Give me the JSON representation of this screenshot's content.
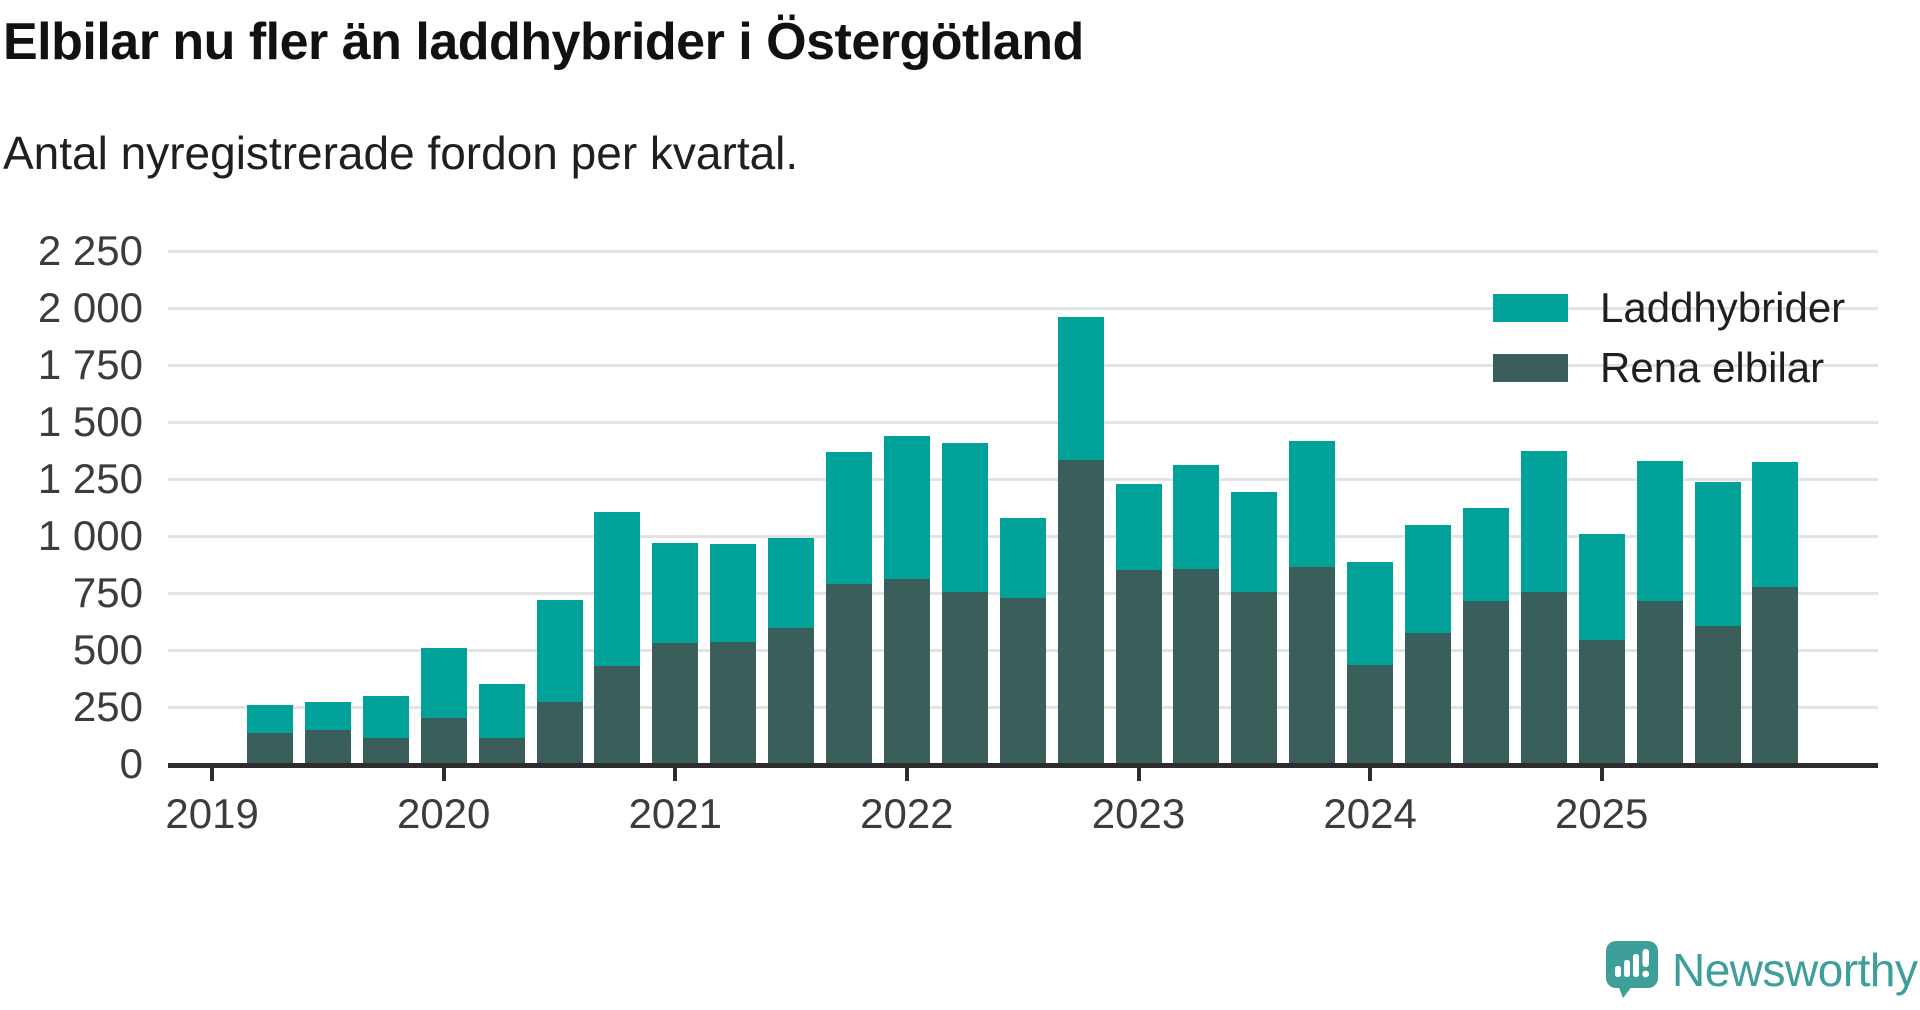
{
  "title": "Elbilar nu fler än laddhybrider i Östergötland",
  "subtitle": "Antal nyregistrerade fordon per kvartal.",
  "legend": {
    "items": [
      {
        "label": "Laddhybrider",
        "color": "#00a29a"
      },
      {
        "label": "Rena elbilar",
        "color": "#3a5e59"
      }
    ]
  },
  "branding": {
    "text": "Newsworthy",
    "color": "#3e9e99"
  },
  "colors": {
    "laddhybrider": "#00a29a",
    "rena_elbilar": "#3a5e59",
    "grid": "#e3e3e3",
    "axis": "#2d2d2d"
  },
  "chart_data": {
    "type": "bar",
    "stacked": true,
    "title": "Elbilar nu fler än laddhybrider i Östergötland",
    "subtitle": "Antal nyregistrerade fordon per kvartal.",
    "categories": [
      "2019Q1",
      "2019Q2",
      "2019Q3",
      "2019Q4",
      "2020Q1",
      "2020Q2",
      "2020Q3",
      "2020Q4",
      "2021Q1",
      "2021Q2",
      "2021Q3",
      "2021Q4",
      "2022Q1",
      "2022Q2",
      "2022Q3",
      "2022Q4",
      "2023Q1",
      "2023Q2",
      "2023Q3",
      "2023Q4",
      "2024Q1",
      "2024Q2",
      "2024Q3",
      "2024Q4",
      "2025Q1",
      "2025Q2",
      "2025Q3"
    ],
    "series": [
      {
        "name": "Rena elbilar",
        "color": "#3a5e59",
        "values": [
          135,
          150,
          115,
          200,
          115,
          270,
          430,
          530,
          535,
          595,
          790,
          810,
          755,
          730,
          1335,
          850,
          855,
          755,
          865,
          435,
          575,
          715,
          755,
          545,
          715,
          605,
          775
        ]
      },
      {
        "name": "Laddhybrider",
        "color": "#00a29a",
        "values": [
          125,
          120,
          185,
          310,
          235,
          450,
          675,
          440,
          430,
          395,
          580,
          630,
          655,
          350,
          625,
          380,
          455,
          440,
          550,
          450,
          475,
          410,
          620,
          465,
          615,
          630,
          550
        ]
      }
    ],
    "totals": [
      260,
      270,
      300,
      510,
      350,
      720,
      1105,
      970,
      965,
      990,
      1370,
      1440,
      1410,
      1080,
      1960,
      1230,
      1310,
      1195,
      1415,
      885,
      1050,
      1125,
      1375,
      1010,
      1330,
      1235,
      1325
    ],
    "xlabel": "",
    "ylabel": "",
    "ylim": [
      0,
      2250
    ],
    "yticks": [
      {
        "value": 0,
        "label": "0"
      },
      {
        "value": 250,
        "label": "250"
      },
      {
        "value": 500,
        "label": "500"
      },
      {
        "value": 750,
        "label": "750"
      },
      {
        "value": 1000,
        "label": "1 000"
      },
      {
        "value": 1250,
        "label": "1 250"
      },
      {
        "value": 1500,
        "label": "1 500"
      },
      {
        "value": 1750,
        "label": "1 750"
      },
      {
        "value": 2000,
        "label": "2 000"
      },
      {
        "value": 2250,
        "label": "2 250"
      }
    ],
    "xticks": [
      "2019",
      "2020",
      "2021",
      "2022",
      "2023",
      "2024",
      "2025"
    ],
    "grid": true,
    "legend_position": "top-right"
  }
}
